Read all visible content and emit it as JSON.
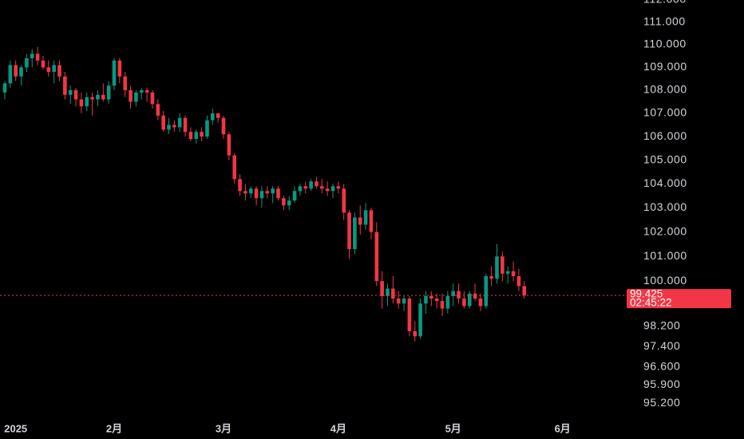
{
  "chart_data": {
    "type": "candlestick",
    "log_scale": true,
    "up_color": "#089981",
    "down_color": "#f23645",
    "ylim": [
      94.5,
      112
    ],
    "yticks": [
      {
        "value": 112,
        "label": "112.000"
      },
      {
        "value": 111,
        "label": "111.000"
      },
      {
        "value": 110,
        "label": "110.000"
      },
      {
        "value": 109,
        "label": "109.000"
      },
      {
        "value": 108,
        "label": "108.000"
      },
      {
        "value": 107,
        "label": "107.000"
      },
      {
        "value": 106,
        "label": "106.000"
      },
      {
        "value": 105,
        "label": "105.000"
      },
      {
        "value": 104,
        "label": "104.000"
      },
      {
        "value": 103,
        "label": "103.000"
      },
      {
        "value": 102,
        "label": "102.000"
      },
      {
        "value": 101,
        "label": "101.000"
      },
      {
        "value": 100,
        "label": "100.000"
      },
      {
        "value": 98.2,
        "label": "98.200"
      },
      {
        "value": 97.4,
        "label": "97.400"
      },
      {
        "value": 96.6,
        "label": "96.600"
      },
      {
        "value": 95.9,
        "label": "95.900"
      },
      {
        "value": 95.2,
        "label": "95.200"
      }
    ],
    "last_price": 99.425,
    "countdown": "02:45:22",
    "categories": [
      null,
      null,
      "2025",
      null,
      null,
      null,
      null,
      null,
      null,
      null,
      null,
      null,
      null,
      null,
      null,
      null,
      null,
      null,
      null,
      null,
      "2月",
      null,
      null,
      null,
      null,
      null,
      null,
      null,
      null,
      null,
      null,
      null,
      null,
      null,
      null,
      null,
      null,
      null,
      null,
      null,
      "3月",
      null,
      null,
      null,
      null,
      null,
      null,
      null,
      null,
      null,
      null,
      null,
      null,
      null,
      null,
      null,
      null,
      null,
      null,
      null,
      null,
      "4月",
      null,
      null,
      null,
      null,
      null,
      null,
      null,
      null,
      null,
      null,
      null,
      null,
      null,
      null,
      null,
      null,
      null,
      null,
      null,
      null,
      "5月",
      null,
      null,
      null,
      null,
      null,
      null,
      null,
      null,
      null,
      null,
      null,
      null,
      null,
      null,
      null,
      null,
      null,
      null,
      null,
      "6月",
      null
    ],
    "open": [
      107.9,
      108.3,
      109.1,
      108.6,
      109.0,
      109.4,
      109.6,
      109.3,
      109.0,
      108.8,
      109.1,
      108.6,
      107.8,
      108.0,
      107.6,
      107.3,
      107.7,
      107.6,
      107.8,
      107.6,
      108.2,
      109.3,
      108.6,
      108.0,
      107.5,
      107.9,
      108.0,
      107.9,
      107.4,
      106.9,
      106.3,
      106.5,
      106.4,
      106.8,
      106.2,
      105.9,
      106.2,
      106.0,
      106.7,
      107.0,
      106.8,
      106.1,
      105.2,
      104.2,
      103.7,
      103.6,
      103.8,
      103.4,
      103.7,
      103.6,
      103.8,
      103.4,
      103.1,
      103.3,
      103.7,
      103.9,
      103.8,
      104.1,
      103.9,
      103.8,
      103.7,
      103.9,
      103.8,
      102.8,
      101.3,
      102.6,
      102.3,
      102.9,
      102.0,
      100.0,
      99.4,
      99.7,
      99.3,
      99.1,
      99.3,
      98.0,
      97.8,
      99.1,
      99.4,
      99.3,
      99.2,
      98.9,
      99.4,
      99.6,
      99.3,
      99.0,
      99.5,
      99.3,
      99.0,
      100.2,
      100.1,
      101.0,
      100.3,
      100.4,
      100.2,
      99.8,
      null,
      null,
      null,
      null,
      null,
      null,
      null,
      null
    ],
    "high": [
      108.4,
      109.3,
      109.3,
      109.1,
      109.6,
      109.8,
      109.9,
      109.5,
      109.3,
      109.3,
      109.3,
      108.8,
      108.2,
      108.1,
      107.9,
      107.9,
      107.9,
      108.0,
      108.3,
      108.4,
      109.4,
      109.4,
      108.8,
      108.2,
      108.0,
      108.1,
      108.1,
      108.0,
      107.6,
      107.1,
      106.8,
      106.7,
      107.0,
      106.9,
      106.4,
      106.3,
      106.4,
      106.9,
      107.2,
      107.0,
      106.9,
      106.2,
      105.3,
      104.4,
      104.0,
      103.9,
      103.9,
      103.9,
      103.9,
      103.9,
      103.9,
      103.5,
      103.5,
      103.9,
      104.0,
      104.1,
      104.2,
      104.3,
      104.2,
      104.1,
      104.0,
      104.1,
      104.0,
      102.9,
      102.8,
      103.1,
      103.2,
      103.0,
      102.4,
      100.4,
      99.9,
      100.2,
      99.6,
      99.4,
      99.4,
      98.4,
      99.3,
      99.6,
      99.6,
      99.5,
      99.5,
      99.6,
      99.9,
      99.9,
      99.6,
      99.6,
      99.9,
      99.5,
      100.3,
      100.6,
      101.5,
      101.2,
      100.6,
      100.8,
      100.5,
      100.0,
      null,
      null,
      null,
      null,
      null,
      null,
      null,
      null
    ],
    "low": [
      107.6,
      108.1,
      108.4,
      108.2,
      108.8,
      109.0,
      109.1,
      108.9,
      108.6,
      108.3,
      108.4,
      107.6,
      107.4,
      107.3,
      107.0,
      107.1,
      106.9,
      107.3,
      107.5,
      107.4,
      108.0,
      108.3,
      107.7,
      107.2,
      107.3,
      107.6,
      107.5,
      107.2,
      106.7,
      106.2,
      106.1,
      106.2,
      106.2,
      106.0,
      105.8,
      105.7,
      105.8,
      105.9,
      106.5,
      106.6,
      105.9,
      105.0,
      104.0,
      103.5,
      103.3,
      103.4,
      103.1,
      103.0,
      103.4,
      103.2,
      103.3,
      102.9,
      102.9,
      103.2,
      103.5,
      103.6,
      103.7,
      103.8,
      103.6,
      103.5,
      103.4,
      103.6,
      102.5,
      100.9,
      101.1,
      101.9,
      102.1,
      101.7,
      99.8,
      98.9,
      99.0,
      99.1,
      98.9,
      98.8,
      97.8,
      97.6,
      97.7,
      98.7,
      99.0,
      98.9,
      98.6,
      98.7,
      99.0,
      99.1,
      98.9,
      98.9,
      99.2,
      98.8,
      98.9,
      99.8,
      99.9,
      100.0,
      99.9,
      100.0,
      99.6,
      99.3,
      null,
      null,
      null,
      null,
      null,
      null,
      null,
      null
    ],
    "close": [
      108.3,
      109.1,
      108.6,
      109.0,
      109.4,
      109.6,
      109.3,
      109.0,
      108.8,
      109.1,
      108.6,
      107.8,
      108.0,
      107.6,
      107.3,
      107.7,
      107.6,
      107.8,
      107.6,
      108.2,
      109.3,
      108.6,
      108.0,
      107.5,
      107.9,
      108.0,
      107.9,
      107.4,
      106.9,
      106.3,
      106.5,
      106.4,
      106.8,
      106.2,
      105.9,
      106.2,
      106.0,
      106.7,
      107.0,
      106.8,
      106.1,
      105.2,
      104.2,
      103.7,
      103.6,
      103.8,
      103.4,
      103.7,
      103.6,
      103.8,
      103.4,
      103.1,
      103.3,
      103.7,
      103.9,
      103.8,
      104.1,
      103.9,
      103.8,
      103.7,
      103.9,
      103.8,
      102.8,
      101.3,
      102.6,
      102.3,
      102.9,
      102.0,
      100.0,
      99.4,
      99.7,
      99.3,
      99.1,
      99.3,
      98.0,
      97.8,
      99.1,
      99.4,
      99.3,
      99.2,
      98.9,
      99.4,
      99.6,
      99.3,
      99.0,
      99.5,
      99.3,
      99.0,
      100.2,
      100.1,
      101.0,
      100.3,
      100.4,
      100.2,
      99.8,
      99.425,
      null,
      null,
      null,
      null,
      null,
      null,
      null,
      null
    ]
  }
}
